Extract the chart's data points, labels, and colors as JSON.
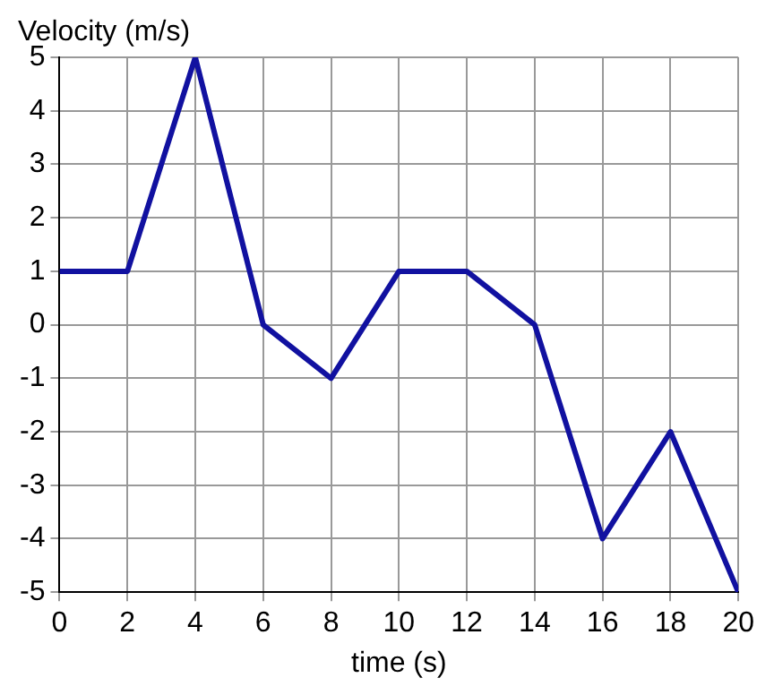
{
  "chart_data": {
    "type": "line",
    "xlabel": "time (s)",
    "ylabel": "Velocity (m/s)",
    "x": [
      0,
      2,
      4,
      6,
      8,
      10,
      12,
      14,
      16,
      18,
      20
    ],
    "series": [
      {
        "color": "#1111a0",
        "values": [
          1,
          1,
          5,
          0,
          -1,
          1,
          1,
          0,
          -4,
          -2,
          -5
        ]
      }
    ],
    "xlim": [
      0,
      20
    ],
    "xticks": [
      0,
      2,
      4,
      6,
      8,
      10,
      12,
      14,
      16,
      18,
      20
    ],
    "ylim": [
      -5,
      5
    ],
    "yticks": [
      -5,
      -4,
      -3,
      -2,
      -1,
      0,
      1,
      2,
      3,
      4,
      5
    ],
    "grid": true,
    "legend": false,
    "marker": "none",
    "line_style": "solid"
  }
}
